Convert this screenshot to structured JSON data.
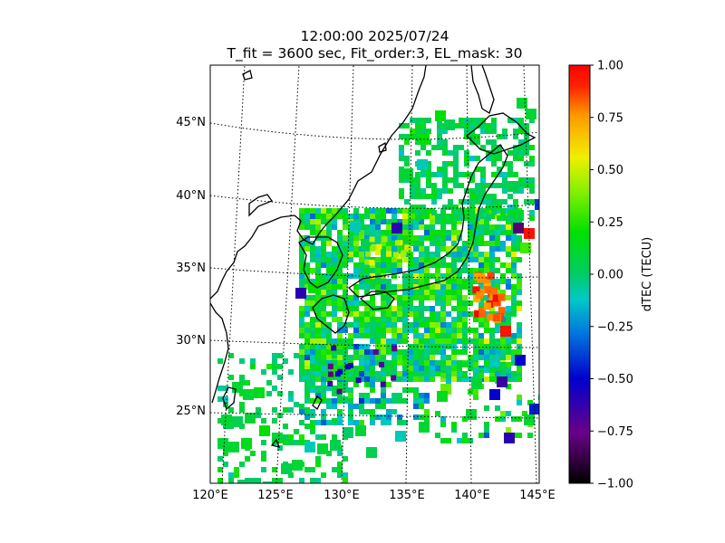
{
  "title": {
    "line1": "12:00:00 2025/07/24",
    "line2": "T_fit = 3600 sec, Fit_order:3, EL_mask: 30"
  },
  "map": {
    "lon_ticks": [
      "120°E",
      "125°E",
      "130°E",
      "135°E",
      "140°E",
      "145°E"
    ],
    "lat_ticks": [
      "25°N",
      "30°N",
      "35°N",
      "40°N",
      "45°N"
    ],
    "gridlines": "dotted",
    "coastlines": true
  },
  "colorbar": {
    "label": "dTEC (TECU)",
    "colormap": "nipy_spectral-like (black-purple-blue-cyan-green-yellow-orange-red)",
    "ticks": [
      "1.00",
      "0.75",
      "0.50",
      "0.25",
      "0.00",
      "−0.25",
      "−0.50",
      "−0.75",
      "−1.00"
    ],
    "range": [
      -1.0,
      1.0
    ]
  }
}
